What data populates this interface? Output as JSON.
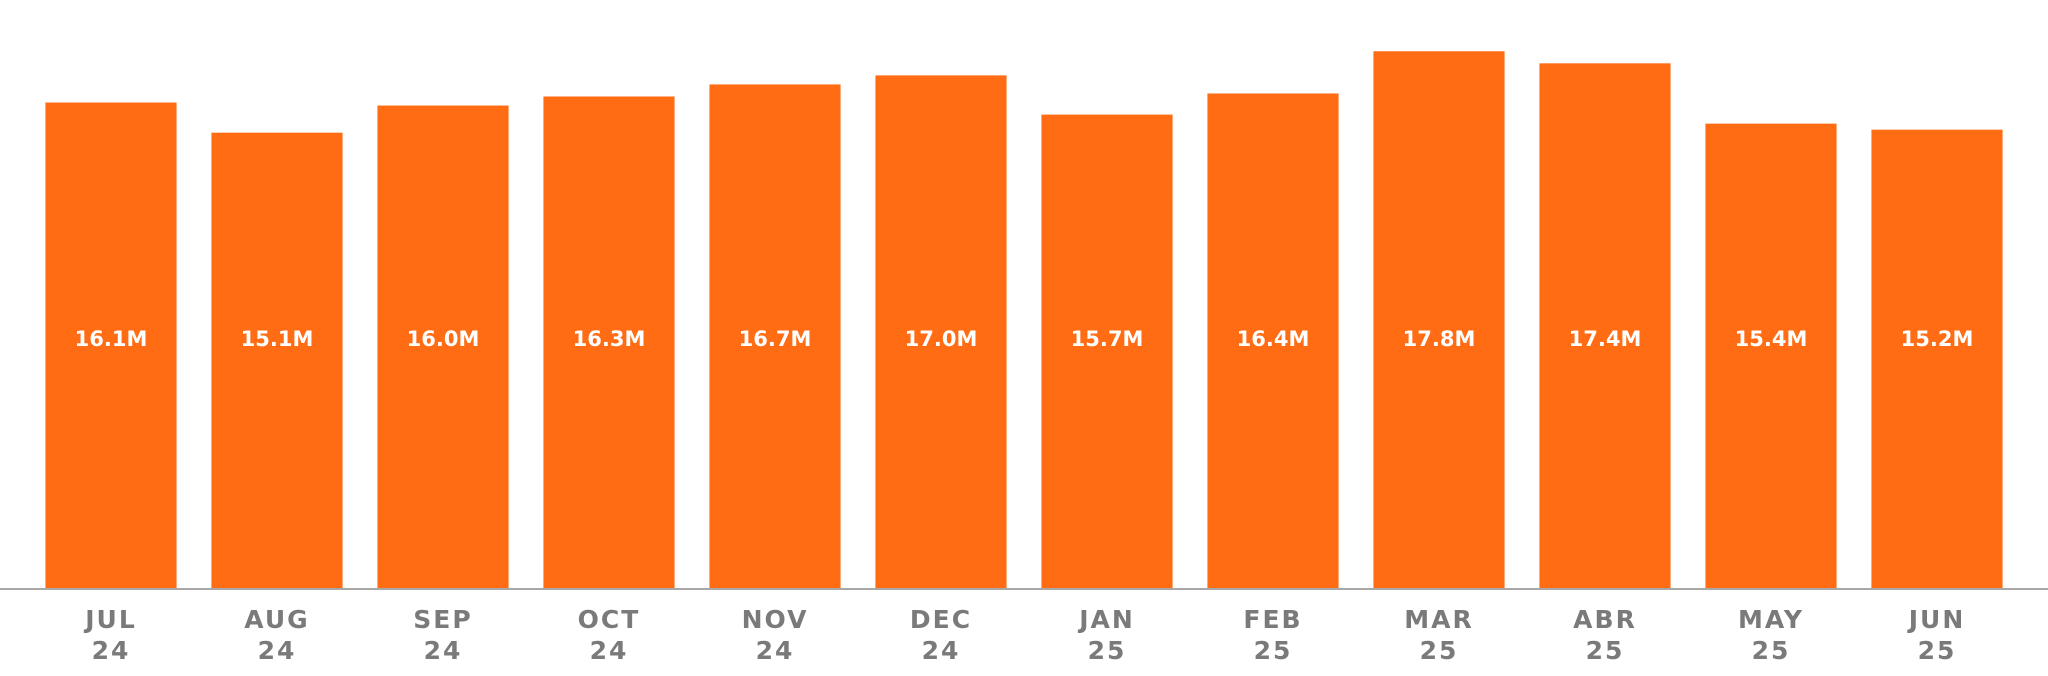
{
  "chart_data": {
    "type": "bar",
    "categories": [
      [
        "JUL",
        "24"
      ],
      [
        "AUG",
        "24"
      ],
      [
        "SEP",
        "24"
      ],
      [
        "OCT",
        "24"
      ],
      [
        "NOV",
        "24"
      ],
      [
        "DEC",
        "24"
      ],
      [
        "JAN",
        "25"
      ],
      [
        "FEB",
        "25"
      ],
      [
        "MAR",
        "25"
      ],
      [
        "ABR",
        "25"
      ],
      [
        "MAY",
        "25"
      ],
      [
        "JUN",
        "25"
      ]
    ],
    "values": [
      16.1,
      15.1,
      16.0,
      16.3,
      16.7,
      17.0,
      15.7,
      16.4,
      17.8,
      17.4,
      15.4,
      15.2
    ],
    "value_labels": [
      "16.1M",
      "15.1M",
      "16.0M",
      "16.3M",
      "16.7M",
      "17.0M",
      "15.7M",
      "16.4M",
      "17.8M",
      "17.4M",
      "15.4M",
      "15.2M"
    ],
    "color": "#ff6c14",
    "ylim": [
      0,
      19.5
    ]
  }
}
